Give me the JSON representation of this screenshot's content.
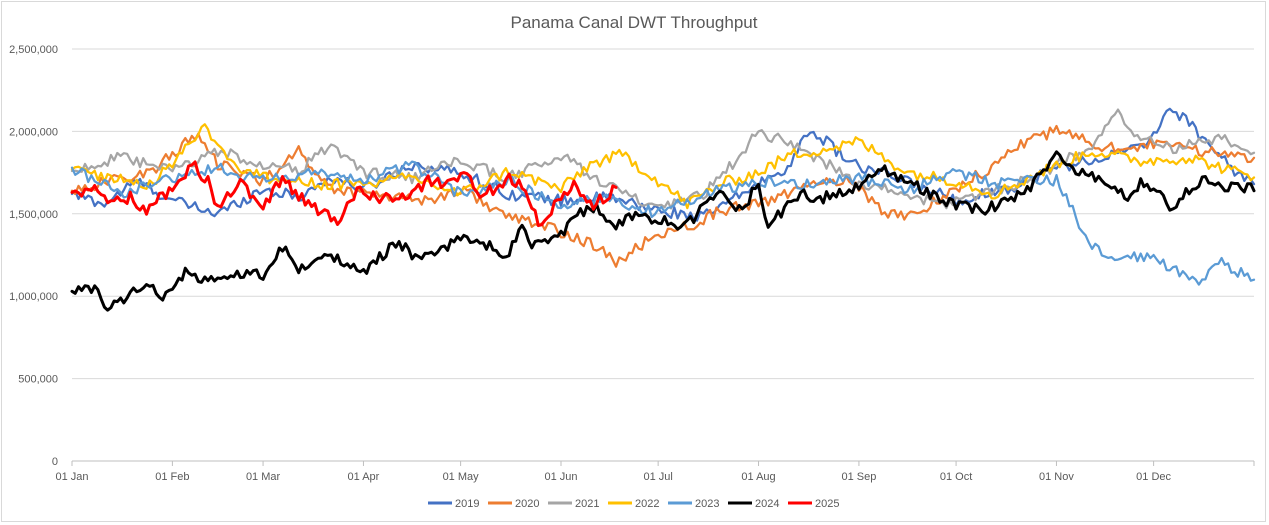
{
  "chart_data": {
    "type": "line",
    "title": "Panama Canal DWT Throughput",
    "xlabel": "",
    "ylabel": "",
    "x_domain": [
      0,
      365
    ],
    "ylim": [
      0,
      2500000
    ],
    "y_ticks": [
      0,
      500000,
      1000000,
      1500000,
      2000000,
      2500000
    ],
    "y_tick_labels": [
      "0",
      "500,000",
      "1,000,000",
      "1,500,000",
      "2,000,000",
      "2,500,000"
    ],
    "x_ticks": [
      0,
      31,
      59,
      90,
      120,
      151,
      181,
      212,
      243,
      273,
      304,
      334
    ],
    "x_tick_labels": [
      "01 Jan",
      "01 Feb",
      "01 Mar",
      "01 Apr",
      "01 May",
      "01 Jun",
      "01 Jul",
      "01 Aug",
      "01 Sep",
      "01 Oct",
      "01 Nov",
      "01 Dec"
    ],
    "grid": true,
    "legend": "bottom",
    "series": [
      {
        "name": "2019",
        "color": "#4472C4",
        "points": [
          [
            0,
            1620000
          ],
          [
            10,
            1560000
          ],
          [
            20,
            1700000
          ],
          [
            31,
            1580000
          ],
          [
            45,
            1500000
          ],
          [
            59,
            1650000
          ],
          [
            70,
            1600000
          ],
          [
            80,
            1720000
          ],
          [
            90,
            1650000
          ],
          [
            105,
            1800000
          ],
          [
            120,
            1750000
          ],
          [
            135,
            1620000
          ],
          [
            151,
            1580000
          ],
          [
            165,
            1600000
          ],
          [
            181,
            1520000
          ],
          [
            195,
            1480000
          ],
          [
            212,
            1680000
          ],
          [
            222,
            1800000
          ],
          [
            228,
            2020000
          ],
          [
            235,
            1900000
          ],
          [
            243,
            1780000
          ],
          [
            258,
            1700000
          ],
          [
            273,
            1580000
          ],
          [
            290,
            1660000
          ],
          [
            304,
            1780000
          ],
          [
            320,
            1850000
          ],
          [
            330,
            1900000
          ],
          [
            340,
            2140000
          ],
          [
            350,
            1950000
          ],
          [
            358,
            1780000
          ],
          [
            365,
            1680000
          ]
        ]
      },
      {
        "name": "2020",
        "color": "#ED7D31",
        "points": [
          [
            0,
            1640000
          ],
          [
            12,
            1700000
          ],
          [
            25,
            1760000
          ],
          [
            38,
            1980000
          ],
          [
            45,
            1800000
          ],
          [
            59,
            1700000
          ],
          [
            70,
            1880000
          ],
          [
            80,
            1650000
          ],
          [
            95,
            1620000
          ],
          [
            110,
            1580000
          ],
          [
            120,
            1650000
          ],
          [
            135,
            1480000
          ],
          [
            150,
            1400000
          ],
          [
            162,
            1300000
          ],
          [
            168,
            1200000
          ],
          [
            181,
            1380000
          ],
          [
            190,
            1420000
          ],
          [
            200,
            1520000
          ],
          [
            212,
            1560000
          ],
          [
            225,
            1650000
          ],
          [
            240,
            1720000
          ],
          [
            250,
            1520000
          ],
          [
            258,
            1480000
          ],
          [
            273,
            1650000
          ],
          [
            285,
            1800000
          ],
          [
            295,
            1950000
          ],
          [
            304,
            2000000
          ],
          [
            320,
            1900000
          ],
          [
            334,
            1920000
          ],
          [
            350,
            1880000
          ],
          [
            365,
            1840000
          ]
        ]
      },
      {
        "name": "2021",
        "color": "#A5A5A5",
        "points": [
          [
            0,
            1760000
          ],
          [
            15,
            1840000
          ],
          [
            31,
            1760000
          ],
          [
            45,
            1880000
          ],
          [
            59,
            1800000
          ],
          [
            70,
            1760000
          ],
          [
            80,
            1920000
          ],
          [
            90,
            1750000
          ],
          [
            105,
            1720000
          ],
          [
            120,
            1820000
          ],
          [
            135,
            1720000
          ],
          [
            151,
            1850000
          ],
          [
            165,
            1680000
          ],
          [
            181,
            1520000
          ],
          [
            195,
            1620000
          ],
          [
            205,
            1820000
          ],
          [
            212,
            2000000
          ],
          [
            225,
            1900000
          ],
          [
            235,
            1780000
          ],
          [
            243,
            1680000
          ],
          [
            258,
            1620000
          ],
          [
            268,
            1550000
          ],
          [
            280,
            1620000
          ],
          [
            295,
            1700000
          ],
          [
            304,
            1800000
          ],
          [
            315,
            1900000
          ],
          [
            322,
            2120000
          ],
          [
            330,
            1960000
          ],
          [
            340,
            1900000
          ],
          [
            355,
            1950000
          ],
          [
            365,
            1870000
          ]
        ]
      },
      {
        "name": "2022",
        "color": "#FFC000",
        "points": [
          [
            0,
            1770000
          ],
          [
            12,
            1720000
          ],
          [
            25,
            1680000
          ],
          [
            35,
            1900000
          ],
          [
            41,
            2030000
          ],
          [
            50,
            1800000
          ],
          [
            59,
            1720000
          ],
          [
            75,
            1680000
          ],
          [
            90,
            1680000
          ],
          [
            105,
            1720000
          ],
          [
            120,
            1620000
          ],
          [
            135,
            1760000
          ],
          [
            151,
            1650000
          ],
          [
            160,
            1800000
          ],
          [
            170,
            1860000
          ],
          [
            181,
            1700000
          ],
          [
            190,
            1560000
          ],
          [
            200,
            1680000
          ],
          [
            212,
            1750000
          ],
          [
            222,
            1860000
          ],
          [
            235,
            1900000
          ],
          [
            243,
            1940000
          ],
          [
            258,
            1750000
          ],
          [
            273,
            1700000
          ],
          [
            285,
            1620000
          ],
          [
            300,
            1760000
          ],
          [
            315,
            1880000
          ],
          [
            330,
            1820000
          ],
          [
            345,
            1840000
          ],
          [
            355,
            1780000
          ],
          [
            365,
            1720000
          ]
        ]
      },
      {
        "name": "2023",
        "color": "#5B9BD5",
        "points": [
          [
            0,
            1780000
          ],
          [
            15,
            1620000
          ],
          [
            31,
            1720000
          ],
          [
            45,
            1780000
          ],
          [
            59,
            1700000
          ],
          [
            75,
            1750000
          ],
          [
            90,
            1700000
          ],
          [
            105,
            1800000
          ],
          [
            120,
            1620000
          ],
          [
            135,
            1700000
          ],
          [
            151,
            1550000
          ],
          [
            165,
            1600000
          ],
          [
            181,
            1500000
          ],
          [
            195,
            1620000
          ],
          [
            212,
            1700000
          ],
          [
            225,
            1680000
          ],
          [
            243,
            1720000
          ],
          [
            258,
            1640000
          ],
          [
            273,
            1760000
          ],
          [
            285,
            1680000
          ],
          [
            295,
            1720000
          ],
          [
            304,
            1700000
          ],
          [
            310,
            1480000
          ],
          [
            315,
            1300000
          ],
          [
            320,
            1220000
          ],
          [
            330,
            1240000
          ],
          [
            340,
            1180000
          ],
          [
            348,
            1080000
          ],
          [
            355,
            1200000
          ],
          [
            365,
            1100000
          ]
        ]
      },
      {
        "name": "2024",
        "color": "#000000",
        "points": [
          [
            0,
            1030000
          ],
          [
            8,
            1030000
          ],
          [
            10,
            930000
          ],
          [
            15,
            960000
          ],
          [
            20,
            1060000
          ],
          [
            25,
            1050000
          ],
          [
            28,
            980000
          ],
          [
            31,
            1060000
          ],
          [
            35,
            1150000
          ],
          [
            40,
            1080000
          ],
          [
            47,
            1100000
          ],
          [
            55,
            1140000
          ],
          [
            59,
            1120000
          ],
          [
            65,
            1300000
          ],
          [
            70,
            1150000
          ],
          [
            75,
            1220000
          ],
          [
            82,
            1240000
          ],
          [
            90,
            1150000
          ],
          [
            95,
            1230000
          ],
          [
            100,
            1330000
          ],
          [
            105,
            1260000
          ],
          [
            110,
            1230000
          ],
          [
            115,
            1280000
          ],
          [
            120,
            1360000
          ],
          [
            130,
            1300000
          ],
          [
            135,
            1240000
          ],
          [
            138,
            1420000
          ],
          [
            143,
            1300000
          ],
          [
            151,
            1380000
          ],
          [
            160,
            1560000
          ],
          [
            168,
            1440000
          ],
          [
            175,
            1500000
          ],
          [
            181,
            1460000
          ],
          [
            190,
            1430000
          ],
          [
            200,
            1640000
          ],
          [
            207,
            1520000
          ],
          [
            212,
            1700000
          ],
          [
            215,
            1400000
          ],
          [
            220,
            1540000
          ],
          [
            225,
            1620000
          ],
          [
            232,
            1600000
          ],
          [
            243,
            1660000
          ],
          [
            250,
            1780000
          ],
          [
            258,
            1700000
          ],
          [
            265,
            1620000
          ],
          [
            273,
            1560000
          ],
          [
            280,
            1520000
          ],
          [
            290,
            1580000
          ],
          [
            295,
            1650000
          ],
          [
            304,
            1860000
          ],
          [
            310,
            1750000
          ],
          [
            318,
            1720000
          ],
          [
            325,
            1600000
          ],
          [
            330,
            1680000
          ],
          [
            335,
            1640000
          ],
          [
            340,
            1520000
          ],
          [
            345,
            1650000
          ],
          [
            350,
            1720000
          ],
          [
            356,
            1640000
          ],
          [
            360,
            1680000
          ],
          [
            365,
            1640000
          ]
        ]
      },
      {
        "name": "2025",
        "color": "#FF0000",
        "points": [
          [
            0,
            1630000
          ],
          [
            8,
            1640000
          ],
          [
            12,
            1580000
          ],
          [
            18,
            1600000
          ],
          [
            23,
            1520000
          ],
          [
            27,
            1600000
          ],
          [
            31,
            1650000
          ],
          [
            37,
            1800000
          ],
          [
            42,
            1700000
          ],
          [
            45,
            1530000
          ],
          [
            52,
            1680000
          ],
          [
            59,
            1550000
          ],
          [
            65,
            1720000
          ],
          [
            70,
            1600000
          ],
          [
            75,
            1540000
          ],
          [
            82,
            1460000
          ],
          [
            88,
            1650000
          ],
          [
            95,
            1600000
          ],
          [
            105,
            1620000
          ],
          [
            110,
            1700000
          ],
          [
            117,
            1680000
          ],
          [
            122,
            1740000
          ],
          [
            125,
            1600000
          ],
          [
            130,
            1650000
          ],
          [
            135,
            1720000
          ],
          [
            140,
            1650000
          ],
          [
            145,
            1400000
          ],
          [
            151,
            1620000
          ],
          [
            155,
            1680000
          ],
          [
            160,
            1550000
          ],
          [
            165,
            1600000
          ],
          [
            168,
            1660000
          ]
        ]
      }
    ]
  }
}
